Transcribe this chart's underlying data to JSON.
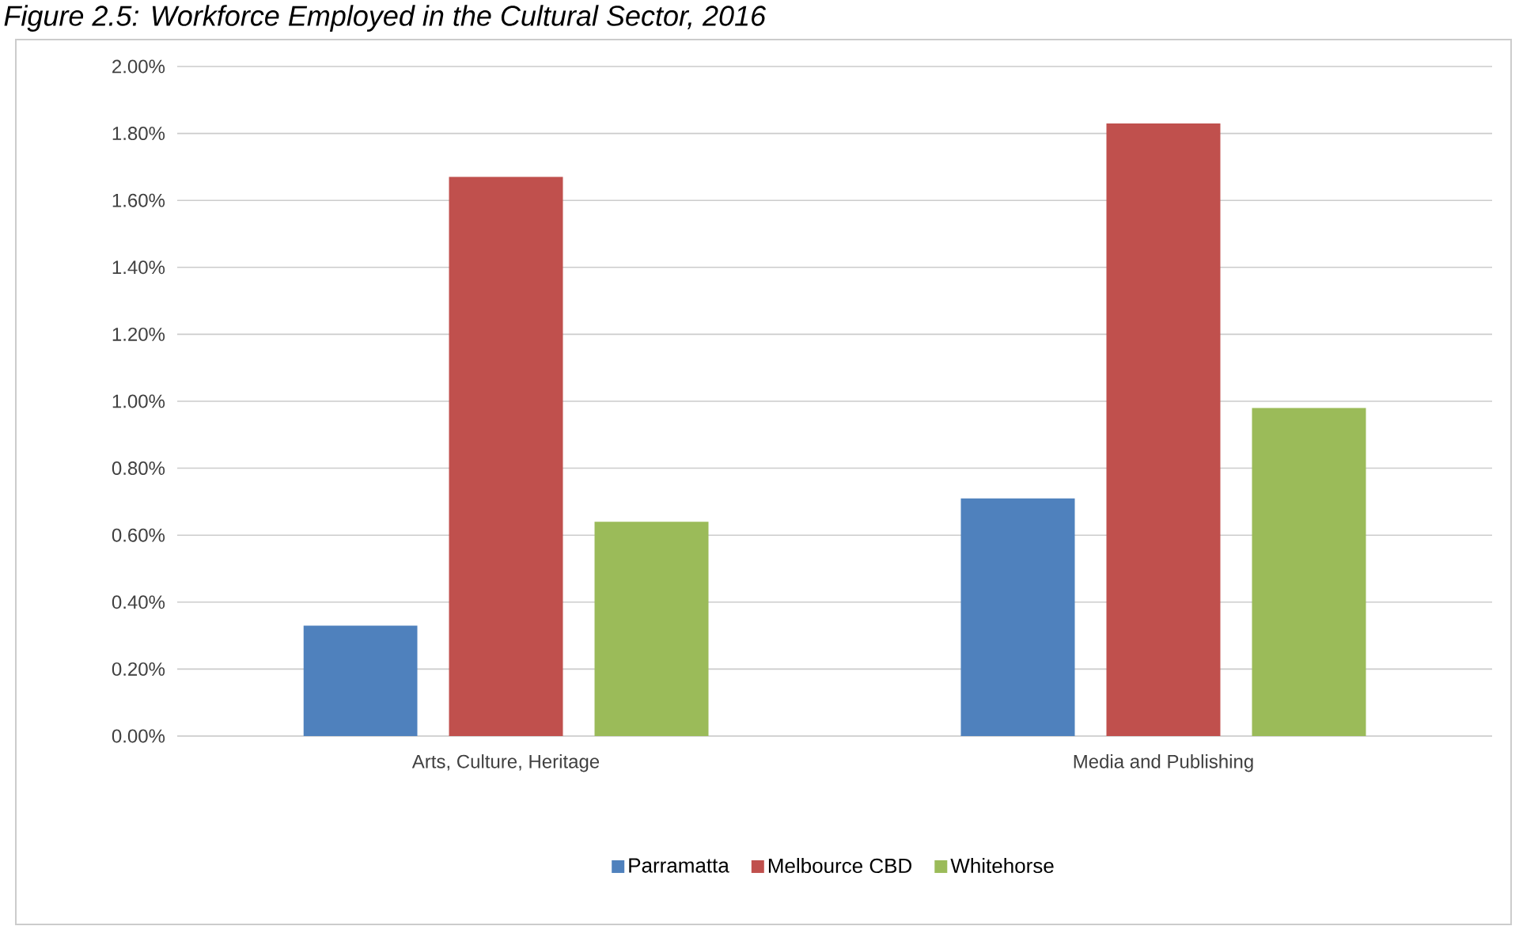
{
  "chart_data": {
    "type": "bar",
    "title": "Figure 2.5: Workforce Employed in the Cultural Sector, 2016",
    "categories": [
      "Arts, Culture, Heritage",
      "Media and Publishing"
    ],
    "series": [
      {
        "name": "Parramatta",
        "color": "#4f81bd",
        "values": [
          0.33,
          0.71
        ]
      },
      {
        "name": "Melbource CBD",
        "color": "#c0504d",
        "values": [
          1.67,
          1.83
        ]
      },
      {
        "name": "Whitehorse",
        "color": "#9bbb59",
        "values": [
          0.64,
          0.98
        ]
      }
    ],
    "ylim": [
      0,
      2
    ],
    "yticks": [
      {
        "value": 0,
        "label": "0.00%"
      },
      {
        "value": 0.2,
        "label": "0.20%"
      },
      {
        "value": 0.4,
        "label": "0.40%"
      },
      {
        "value": 0.6,
        "label": "0.60%"
      },
      {
        "value": 0.8,
        "label": "0.80%"
      },
      {
        "value": 1.0,
        "label": "1.00%"
      },
      {
        "value": 1.2,
        "label": "1.20%"
      },
      {
        "value": 1.4,
        "label": "1.40%"
      },
      {
        "value": 1.6,
        "label": "1.60%"
      },
      {
        "value": 1.8,
        "label": "1.80%"
      },
      {
        "value": 2.0,
        "label": "2.00%"
      }
    ],
    "grid": "y",
    "legend": "bottom"
  }
}
